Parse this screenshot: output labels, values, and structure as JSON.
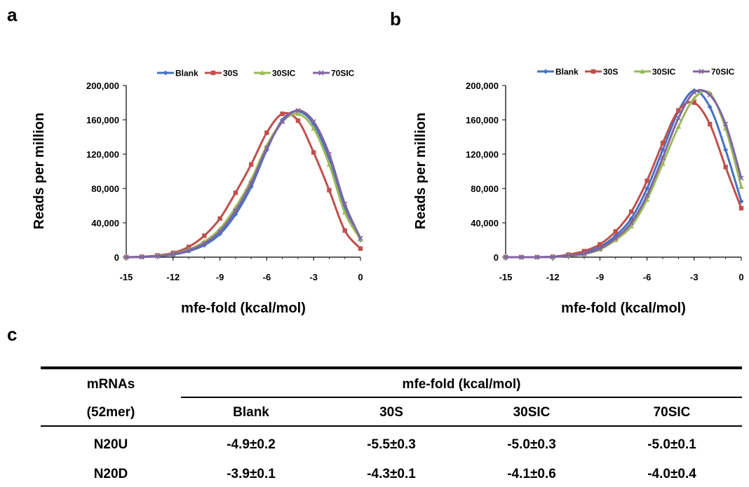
{
  "panels": {
    "a": "a",
    "b": "b",
    "c": "c"
  },
  "chart_data": [
    {
      "type": "line",
      "panel": "a",
      "xlabel": "mfe-fold (kcal/mol)",
      "ylabel": "Reads per million",
      "xlim": [
        -15,
        0
      ],
      "ylim": [
        0,
        200000
      ],
      "xticks": [
        "-15",
        "-12",
        "-9",
        "-6",
        "-3",
        "0"
      ],
      "yticks": [
        "0",
        "40,000",
        "80,000",
        "120,000",
        "160,000",
        "200,000"
      ],
      "legend": "top",
      "x": [
        -15,
        -14,
        -13,
        -12,
        -11,
        -10,
        -9,
        -8,
        -7,
        -6,
        -5,
        -4,
        -3,
        -2,
        -1,
        0
      ],
      "series": [
        {
          "name": "Blank",
          "color": "#4472C4",
          "marker": "diamond",
          "values": [
            0,
            200,
            1000,
            3000,
            7000,
            14000,
            27000,
            50000,
            82000,
            125000,
            160000,
            170000,
            155000,
            115000,
            58000,
            20000
          ]
        },
        {
          "name": "30S",
          "color": "#C0504D",
          "marker": "square",
          "values": [
            0,
            500,
            2000,
            5000,
            12000,
            25000,
            45000,
            75000,
            108000,
            145000,
            167000,
            159000,
            122000,
            78000,
            31000,
            10000
          ]
        },
        {
          "name": "30SIC",
          "color": "#9BBB59",
          "marker": "triangle",
          "values": [
            0,
            300,
            1500,
            4000,
            9000,
            18000,
            33000,
            58000,
            90000,
            130000,
            158000,
            167000,
            150000,
            108000,
            52000,
            21000
          ]
        },
        {
          "name": "70SIC",
          "color": "#8064A2",
          "marker": "x",
          "values": [
            0,
            250,
            1200,
            3500,
            8000,
            16000,
            30000,
            54000,
            86000,
            127000,
            158000,
            171000,
            158000,
            120000,
            62000,
            22000
          ]
        }
      ]
    },
    {
      "type": "line",
      "panel": "b",
      "xlabel": "mfe-fold (kcal/mol)",
      "ylabel": "Reads per million",
      "xlim": [
        -15,
        0
      ],
      "ylim": [
        0,
        200000
      ],
      "xticks": [
        "-15",
        "-12",
        "-9",
        "-6",
        "-3",
        "0"
      ],
      "yticks": [
        "0",
        "40,000",
        "80,000",
        "120,000",
        "160,000",
        "200,000"
      ],
      "legend": "top",
      "x": [
        -15,
        -14,
        -13,
        -12,
        -11,
        -10,
        -9,
        -8,
        -7,
        -6,
        -5,
        -4,
        -3,
        -2,
        -1,
        0
      ],
      "series": [
        {
          "name": "Blank",
          "color": "#4472C4",
          "marker": "diamond",
          "values": [
            0,
            0,
            0,
            500,
            2000,
            5000,
            12000,
            25000,
            45000,
            80000,
            125000,
            170000,
            194000,
            175000,
            125000,
            65000
          ]
        },
        {
          "name": "30S",
          "color": "#C0504D",
          "marker": "square",
          "values": [
            0,
            0,
            0,
            500,
            3000,
            7000,
            15000,
            30000,
            53000,
            89000,
            133000,
            171000,
            180000,
            155000,
            105000,
            57000
          ]
        },
        {
          "name": "30SIC",
          "color": "#9BBB59",
          "marker": "triangle",
          "values": [
            0,
            0,
            0,
            300,
            1500,
            3500,
            9000,
            20000,
            36000,
            67000,
            109000,
            152000,
            185000,
            191000,
            150000,
            82000
          ]
        },
        {
          "name": "70SIC",
          "color": "#8064A2",
          "marker": "x",
          "values": [
            0,
            0,
            0,
            300,
            1700,
            4000,
            10000,
            22000,
            40000,
            72000,
            116000,
            162000,
            192000,
            189000,
            155000,
            92000
          ]
        }
      ]
    }
  ],
  "table": {
    "col0_header_line1": "mRNAs",
    "col0_header_line2": "(52mer)",
    "group_header": "mfe-fold (kcal/mol)",
    "columns": [
      "Blank",
      "30S",
      "30SIC",
      "70SIC"
    ],
    "rows": [
      {
        "label": "N20U",
        "values": [
          "-4.9±0.2",
          "-5.5±0.3",
          "-5.0±0.3",
          "-5.0±0.1"
        ]
      },
      {
        "label": "N20D",
        "values": [
          "-3.9±0.1",
          "-4.3±0.1",
          "-4.1±0.6",
          "-4.0±0.4"
        ]
      }
    ]
  }
}
